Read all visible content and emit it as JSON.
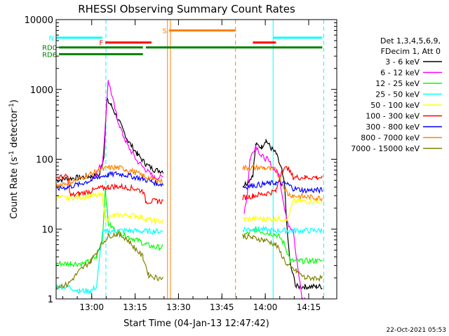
{
  "chart_data": {
    "type": "line",
    "title": "RHESSI Observing Summary Count Rates",
    "xlabel": "Start Time (04-Jan-13 12:47:42)",
    "ylabel_main": "Count Rate (s",
    "ylabel_sup1": "-1",
    "ylabel_mid": " detector",
    "ylabel_sup2": "-1",
    "ylabel_end": ")",
    "footer": "22-Oct-2021 05:53",
    "x_unit": "minutes since 12:47:42",
    "xlim": [
      0,
      97
    ],
    "ylim": [
      1,
      10000
    ],
    "yscale": "log",
    "xticks": [
      {
        "x": 12.3,
        "label": "13:00"
      },
      {
        "x": 27.3,
        "label": "13:15"
      },
      {
        "x": 42.3,
        "label": "13:30"
      },
      {
        "x": 57.3,
        "label": "13:45"
      },
      {
        "x": 72.3,
        "label": "14:00"
      },
      {
        "x": 87.3,
        "label": "14:15"
      }
    ],
    "yticks": [
      {
        "y": 1,
        "label": "1"
      },
      {
        "y": 10,
        "label": "10"
      },
      {
        "y": 100,
        "label": "100"
      },
      {
        "y": 1000,
        "label": "1000"
      },
      {
        "y": 10000,
        "label": "10000"
      }
    ],
    "legend_header": [
      "Det 1,3,4,5,6,9,",
      "FDecim 1, Att 0"
    ],
    "series": [
      {
        "name": "3 - 6 keV",
        "color": "#000000",
        "points": [
          [
            0,
            50
          ],
          [
            3,
            52
          ],
          [
            8,
            55
          ],
          [
            12,
            57
          ],
          [
            15,
            60
          ],
          [
            16.5,
            110
          ],
          [
            17.5,
            700
          ],
          [
            19,
            600
          ],
          [
            22,
            330
          ],
          [
            25,
            180
          ],
          [
            28,
            120
          ],
          [
            31,
            85
          ],
          [
            34,
            70
          ],
          [
            37,
            68
          ],
          [
            37.5,
            null
          ],
          [
            64,
            null
          ],
          [
            64.5,
            42
          ],
          [
            66,
            46
          ],
          [
            68,
            60
          ],
          [
            69,
            160
          ],
          [
            71,
            150
          ],
          [
            72.5,
            190
          ],
          [
            74,
            150
          ],
          [
            76,
            120
          ],
          [
            78,
            70
          ],
          [
            79,
            40
          ],
          [
            80,
            8
          ],
          [
            81,
            3
          ],
          [
            83,
            1.5
          ],
          [
            86,
            1.5
          ],
          [
            90,
            1.5
          ],
          [
            92,
            1.5
          ]
        ]
      },
      {
        "name": "6 - 12 keV",
        "color": "#ff00ff",
        "points": [
          [
            12,
            50
          ],
          [
            14,
            65
          ],
          [
            16,
            90
          ],
          [
            17,
            300
          ],
          [
            18,
            1400
          ],
          [
            19,
            900
          ],
          [
            21,
            400
          ],
          [
            23,
            230
          ],
          [
            25,
            150
          ],
          [
            28,
            95
          ],
          [
            31,
            70
          ],
          [
            34,
            55
          ],
          [
            37,
            55
          ],
          [
            37.5,
            null
          ],
          [
            64,
            null
          ],
          [
            65,
            18
          ],
          [
            66,
            30
          ],
          [
            67,
            100
          ],
          [
            69,
            160
          ],
          [
            71,
            110
          ],
          [
            73,
            100
          ],
          [
            75,
            75
          ],
          [
            77,
            60
          ],
          [
            79,
            20
          ],
          [
            80,
            12
          ],
          [
            82,
            10
          ],
          [
            83,
            4
          ],
          [
            85,
            1
          ],
          [
            86,
            1
          ]
        ]
      },
      {
        "name": "12 - 25 keV",
        "color": "#00ff00",
        "points": [
          [
            0,
            3.2
          ],
          [
            5,
            3.2
          ],
          [
            10,
            3.2
          ],
          [
            14,
            4
          ],
          [
            16,
            7
          ],
          [
            17,
            40
          ],
          [
            18,
            12
          ],
          [
            20,
            10
          ],
          [
            24,
            8
          ],
          [
            28,
            7
          ],
          [
            31,
            6
          ],
          [
            34,
            5.5
          ],
          [
            37,
            5.5
          ],
          [
            37.5,
            null
          ],
          [
            64,
            null
          ],
          [
            64.5,
            8
          ],
          [
            67,
            9
          ],
          [
            69,
            10
          ],
          [
            72,
            9
          ],
          [
            75,
            8.5
          ],
          [
            77,
            8
          ],
          [
            79,
            6
          ],
          [
            81,
            3.5
          ],
          [
            85,
            3.5
          ],
          [
            90,
            3.5
          ],
          [
            92,
            3.5
          ]
        ]
      },
      {
        "name": "25 - 50 keV",
        "color": "#00ffff",
        "points": [
          [
            0,
            1.5
          ],
          [
            4,
            1.5
          ],
          [
            8,
            1.3
          ],
          [
            12,
            1.3
          ],
          [
            14,
            1.5
          ],
          [
            16,
            9
          ],
          [
            20,
            9.5
          ],
          [
            25,
            9.5
          ],
          [
            30,
            9.3
          ],
          [
            34,
            9.3
          ],
          [
            37,
            9.3
          ],
          [
            37.5,
            null
          ],
          [
            64,
            null
          ],
          [
            64.5,
            10
          ],
          [
            70,
            10
          ],
          [
            75,
            9.5
          ],
          [
            80,
            9.5
          ],
          [
            85,
            9.5
          ],
          [
            90,
            9.5
          ],
          [
            92,
            9.5
          ]
        ]
      },
      {
        "name": "50 - 100 keV",
        "color": "#ffff00",
        "points": [
          [
            0,
            28
          ],
          [
            4,
            28
          ],
          [
            8,
            29
          ],
          [
            12,
            30
          ],
          [
            16,
            30
          ],
          [
            17,
            14
          ],
          [
            20,
            15.5
          ],
          [
            24,
            16
          ],
          [
            28,
            15.5
          ],
          [
            31,
            14
          ],
          [
            34,
            13
          ],
          [
            37,
            13
          ],
          [
            37.5,
            null
          ],
          [
            64,
            null
          ],
          [
            64.5,
            14
          ],
          [
            68,
            14
          ],
          [
            72,
            14
          ],
          [
            76,
            14
          ],
          [
            80,
            14
          ],
          [
            82,
            25
          ],
          [
            86,
            25
          ],
          [
            90,
            25
          ],
          [
            92,
            25
          ]
        ]
      },
      {
        "name": "100 - 300 keV",
        "color": "#ff0000",
        "points": [
          [
            0,
            55
          ],
          [
            4,
            56
          ],
          [
            5,
            30
          ],
          [
            8,
            32
          ],
          [
            12,
            35
          ],
          [
            15,
            38
          ],
          [
            18,
            40
          ],
          [
            21,
            41
          ],
          [
            24,
            40
          ],
          [
            27,
            38
          ],
          [
            30,
            35
          ],
          [
            31,
            25
          ],
          [
            33,
            25
          ],
          [
            35,
            25
          ],
          [
            37,
            25
          ],
          [
            37.5,
            null
          ],
          [
            64,
            null
          ],
          [
            64.5,
            28
          ],
          [
            68,
            30
          ],
          [
            72,
            32
          ],
          [
            76,
            35
          ],
          [
            78,
            70
          ],
          [
            80,
            75
          ],
          [
            82,
            55
          ],
          [
            86,
            55
          ],
          [
            90,
            55
          ],
          [
            92,
            55
          ]
        ]
      },
      {
        "name": "300 - 800 keV",
        "color": "#0000ff",
        "points": [
          [
            0,
            38
          ],
          [
            4,
            40
          ],
          [
            8,
            44
          ],
          [
            12,
            50
          ],
          [
            15,
            56
          ],
          [
            18,
            60
          ],
          [
            21,
            62
          ],
          [
            24,
            60
          ],
          [
            27,
            56
          ],
          [
            30,
            52
          ],
          [
            33,
            48
          ],
          [
            35,
            45
          ],
          [
            37,
            44
          ],
          [
            37.5,
            null
          ],
          [
            64,
            null
          ],
          [
            64.5,
            40
          ],
          [
            68,
            42
          ],
          [
            72,
            44
          ],
          [
            76,
            46
          ],
          [
            80,
            44
          ],
          [
            82,
            38
          ],
          [
            86,
            36
          ],
          [
            90,
            36
          ],
          [
            92,
            36
          ]
        ]
      },
      {
        "name": "800 - 7000 keV",
        "color": "#ff8000",
        "points": [
          [
            0,
            42
          ],
          [
            4,
            46
          ],
          [
            8,
            52
          ],
          [
            12,
            62
          ],
          [
            15,
            70
          ],
          [
            18,
            75
          ],
          [
            21,
            76
          ],
          [
            24,
            72
          ],
          [
            27,
            66
          ],
          [
            30,
            58
          ],
          [
            33,
            53
          ],
          [
            35,
            50
          ],
          [
            37,
            48
          ],
          [
            37.5,
            null
          ],
          [
            64,
            null
          ],
          [
            64.5,
            75
          ],
          [
            68,
            76
          ],
          [
            72,
            75
          ],
          [
            76,
            70
          ],
          [
            80,
            32
          ],
          [
            82,
            30
          ],
          [
            86,
            29
          ],
          [
            90,
            28
          ],
          [
            92,
            28
          ]
        ]
      },
      {
        "name": "7000 - 15000 keV",
        "color": "#808000",
        "points": [
          [
            0,
            1.5
          ],
          [
            4,
            1.6
          ],
          [
            8,
            2.5
          ],
          [
            12,
            3.5
          ],
          [
            15,
            5.5
          ],
          [
            18,
            8
          ],
          [
            21,
            8.5
          ],
          [
            24,
            7.5
          ],
          [
            27,
            5.5
          ],
          [
            30,
            4
          ],
          [
            32,
            2.2
          ],
          [
            35,
            2
          ],
          [
            37,
            2
          ],
          [
            37.5,
            null
          ],
          [
            64,
            null
          ],
          [
            64.5,
            8
          ],
          [
            68,
            7.5
          ],
          [
            72,
            7
          ],
          [
            76,
            6
          ],
          [
            80,
            3
          ],
          [
            83,
            2.5
          ],
          [
            86,
            2
          ],
          [
            90,
            2
          ],
          [
            92,
            2
          ]
        ]
      }
    ],
    "flag_bars": [
      {
        "label": "N",
        "color": "#00ffff",
        "y": 5500,
        "segments": [
          [
            0,
            16
          ],
          [
            75,
            92
          ]
        ]
      },
      {
        "label": "F",
        "color": "#ff0000",
        "y": 4700,
        "segments": [
          [
            17,
            33
          ],
          [
            68,
            76
          ]
        ]
      },
      {
        "label": "S",
        "color": "#ff8000",
        "y": 7000,
        "segments": [
          [
            39,
            62
          ]
        ]
      },
      {
        "label": "RD0",
        "color": "#008000",
        "y": 4000,
        "segments": [
          [
            1,
            30
          ],
          [
            31,
            62
          ],
          [
            62,
            92
          ]
        ]
      },
      {
        "label": "RD6",
        "color": "#008000",
        "y": 3200,
        "segments": [
          [
            1,
            30
          ]
        ]
      }
    ],
    "vlines": [
      {
        "x": 17.2,
        "color": "#00ffff",
        "dash": true
      },
      {
        "x": 38.5,
        "color": "#ff8000",
        "dash": false
      },
      {
        "x": 39.5,
        "color": "#ff8000",
        "dash": false
      },
      {
        "x": 62.0,
        "color": "#ff8000",
        "dash": true
      },
      {
        "x": 75.0,
        "color": "#00ffff",
        "dash": false
      },
      {
        "x": 92.5,
        "color": "#00ffff",
        "dash": true
      }
    ]
  }
}
